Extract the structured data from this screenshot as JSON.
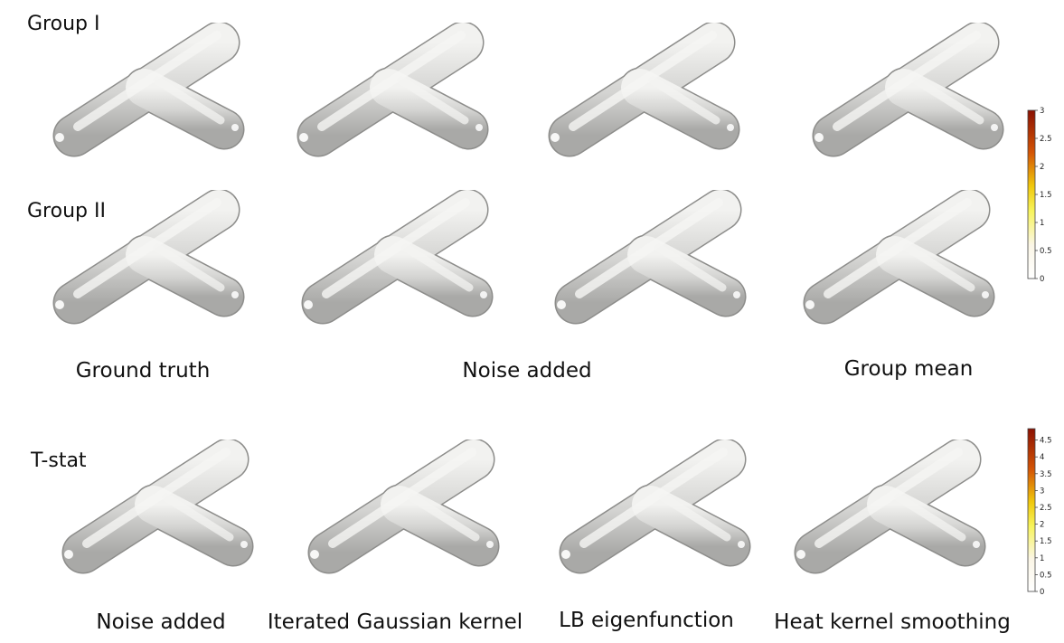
{
  "row_labels": {
    "group1": "Group I",
    "group2": "Group II",
    "tstat": "T-stat"
  },
  "captions_top": {
    "ground_truth": "Ground truth",
    "noise_added": "Noise added",
    "group_mean": "Group mean"
  },
  "captions_bottom": {
    "noise_added": "Noise added",
    "iterated_gaussian": "Iterated Gaussian kernel",
    "lb_eigenfunction": "LB eigenfunction",
    "heat_kernel": "Heat kernel smoothing"
  },
  "colorbar_top": {
    "ticks": [
      "3",
      "2.5",
      "2",
      "1.5",
      "1",
      "0.5",
      "0"
    ]
  },
  "colorbar_bottom": {
    "ticks": [
      "4.5",
      "4",
      "3.5",
      "3",
      "2.5",
      "2",
      "1.5",
      "1",
      "0.5",
      "0"
    ]
  },
  "colors": {
    "surface": "#d6d6d4",
    "hot_high": "#9c1f05",
    "hot_mid": "#e6a106",
    "hot_low": "#f5ef3a"
  }
}
